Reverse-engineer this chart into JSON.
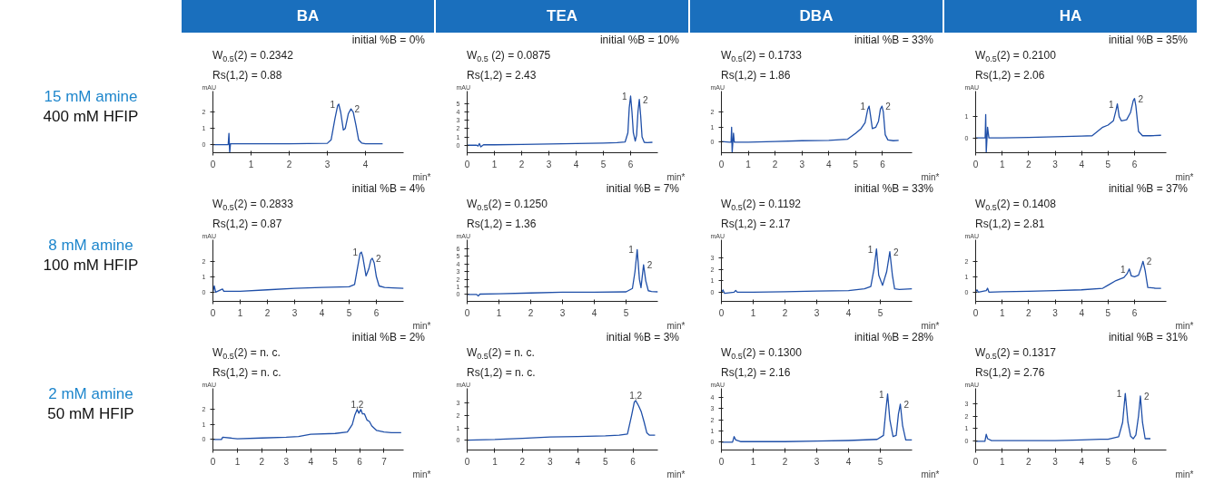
{
  "chart_data": [
    {
      "type": "line",
      "title": "initial %B = 0%",
      "xlabel": "min*",
      "ylabel": "mAU",
      "color": "#1f4fa8",
      "xlim": [
        0,
        5
      ],
      "ylim": [
        -0.5,
        3.3
      ],
      "xticks": [
        0,
        1,
        2,
        3,
        4
      ],
      "yticks": [
        0,
        1,
        2
      ],
      "annotations": [
        "BA",
        "15 mM amine",
        "400 mM HFIP",
        "W$_{0.5}$(2) = 0.2342",
        "Rs(1,2) = 0.88",
        {
          "text": "1",
          "x": 3.3,
          "y": 2.5
        },
        {
          "text": "2",
          "x": 3.62,
          "y": 2.2
        }
      ],
      "x": [
        0,
        0.2,
        0.4,
        0.42,
        0.44,
        0.46,
        0.5,
        0.6,
        1,
        1.5,
        2,
        2.5,
        3,
        3.1,
        3.2,
        3.27,
        3.3,
        3.35,
        3.42,
        3.47,
        3.55,
        3.62,
        3.68,
        3.75,
        3.82,
        3.9,
        4.0,
        4.2,
        4.45
      ],
      "values": [
        0,
        0,
        0,
        0.7,
        -0.5,
        0.05,
        0.05,
        0.05,
        0.05,
        0.05,
        0.05,
        0.07,
        0.08,
        0.3,
        1.6,
        2.4,
        2.5,
        2.0,
        0.9,
        1.0,
        1.9,
        2.2,
        2.0,
        1.2,
        0.3,
        0.1,
        0.05,
        0.05,
        0.05
      ]
    },
    {
      "type": "line",
      "title": "initial %B = 10%",
      "xlabel": "min*",
      "ylabel": "mAU",
      "color": "#1f4fa8",
      "xlim": [
        0,
        7
      ],
      "ylim": [
        -0.9,
        6.5
      ],
      "xticks": [
        0,
        1,
        2,
        3,
        4,
        5,
        6
      ],
      "yticks": [
        0,
        1,
        2,
        3,
        4,
        5
      ],
      "annotations": [
        "TEA",
        "W$_{0.5}$ (2) = 0.0875",
        "Rs(1,2) = 2.43",
        {
          "text": "1",
          "x": 6.0,
          "y": 5.9
        },
        {
          "text": "2",
          "x": 6.32,
          "y": 5.5
        }
      ],
      "x": [
        0,
        0.35,
        0.4,
        0.45,
        0.5,
        0.6,
        1,
        2,
        3,
        4,
        5,
        5.5,
        5.8,
        5.9,
        5.95,
        6.0,
        6.05,
        6.1,
        6.17,
        6.22,
        6.27,
        6.32,
        6.37,
        6.42,
        6.5,
        6.6,
        6.8
      ],
      "values": [
        0,
        0,
        -0.1,
        0.2,
        -0.2,
        0.05,
        0.05,
        0.1,
        0.15,
        0.2,
        0.25,
        0.3,
        0.4,
        1.5,
        4.5,
        5.9,
        4.0,
        1.5,
        0.5,
        1.2,
        4.0,
        5.5,
        3.5,
        1.0,
        0.35,
        0.3,
        0.35
      ]
    },
    {
      "type": "line",
      "title": "initial %B = 33%",
      "xlabel": "min*",
      "ylabel": "mAU",
      "color": "#1f4fa8",
      "xlim": [
        0,
        7.1
      ],
      "ylim": [
        -0.7,
        3.4
      ],
      "xticks": [
        0,
        1,
        2,
        3,
        4,
        5,
        6
      ],
      "yticks": [
        0,
        1,
        2
      ],
      "annotations": [
        "DBA",
        "W$_{0.5}$(2) = 0.1733",
        "Rs(1,2) = 1.86",
        {
          "text": "1",
          "x": 5.5,
          "y": 2.4
        },
        {
          "text": "2",
          "x": 5.98,
          "y": 2.4
        }
      ],
      "x": [
        0,
        0.3,
        0.36,
        0.38,
        0.4,
        0.43,
        0.45,
        0.48,
        0.6,
        1,
        2,
        3,
        4,
        4.7,
        5.0,
        5.2,
        5.35,
        5.45,
        5.5,
        5.55,
        5.62,
        5.75,
        5.85,
        5.92,
        5.98,
        6.03,
        6.1,
        6.2,
        6.4,
        6.6
      ],
      "values": [
        0.05,
        0,
        0,
        1.0,
        -0.7,
        0.1,
        0.6,
        0,
        0,
        0,
        0.05,
        0.1,
        0.12,
        0.2,
        0.6,
        0.9,
        1.3,
        2.2,
        2.4,
        1.8,
        0.9,
        1.0,
        1.4,
        2.2,
        2.4,
        2.0,
        0.5,
        0.15,
        0.1,
        0.12
      ]
    },
    {
      "type": "line",
      "title": "initial %B = 35%",
      "xlabel": "min*",
      "ylabel": "mAU",
      "color": "#1f4fa8",
      "xlim": [
        0,
        7.2
      ],
      "ylim": [
        -0.7,
        2.2
      ],
      "xticks": [
        0,
        1,
        2,
        3,
        4,
        5,
        6
      ],
      "yticks": [
        0,
        1
      ],
      "annotations": [
        "HA",
        "W$_{0.5}$(2) = 0.2100",
        "Rs(1,2) = 2.06",
        {
          "text": "1",
          "x": 5.35,
          "y": 1.6
        },
        {
          "text": "2",
          "x": 6.0,
          "y": 1.85
        }
      ],
      "x": [
        0,
        0.3,
        0.36,
        0.38,
        0.4,
        0.45,
        0.5,
        0.6,
        1,
        2,
        3,
        4,
        4.4,
        4.6,
        4.8,
        5.0,
        5.2,
        5.3,
        5.35,
        5.42,
        5.5,
        5.7,
        5.85,
        5.95,
        6.0,
        6.05,
        6.15,
        6.3,
        6.6,
        7.0
      ],
      "values": [
        0,
        0,
        0,
        1.1,
        -0.7,
        0.5,
        0,
        0,
        0,
        0.02,
        0.05,
        0.08,
        0.1,
        0.3,
        0.5,
        0.6,
        0.8,
        1.3,
        1.6,
        1.0,
        0.8,
        0.85,
        1.2,
        1.75,
        1.85,
        1.5,
        0.3,
        0.1,
        0.1,
        0.12
      ]
    },
    {
      "type": "line",
      "title": "initial %B = 4%",
      "xlabel": "min*",
      "ylabel": "mAU",
      "color": "#1f4fa8",
      "xlim": [
        0,
        7
      ],
      "ylim": [
        -0.6,
        3.4
      ],
      "xticks": [
        0,
        1,
        2,
        3,
        4,
        5,
        6
      ],
      "yticks": [
        0,
        1,
        2
      ],
      "annotations": [
        "8 mM amine",
        "100 mM HFIP",
        "W$_{0.5}$(2) = 0.2833",
        "Rs(1,2) = 0.87",
        {
          "text": "1",
          "x": 5.45,
          "y": 2.6
        },
        {
          "text": "2",
          "x": 5.85,
          "y": 2.2
        }
      ],
      "x": [
        0,
        0.05,
        0.1,
        0.35,
        0.4,
        1,
        2,
        3,
        4,
        5,
        5.2,
        5.3,
        5.4,
        5.45,
        5.5,
        5.62,
        5.72,
        5.8,
        5.85,
        5.92,
        6.0,
        6.1,
        6.3,
        6.6,
        7.0
      ],
      "values": [
        0,
        0.4,
        0,
        0.2,
        0.05,
        0.05,
        0.15,
        0.25,
        0.3,
        0.35,
        0.5,
        1.5,
        2.5,
        2.6,
        2.3,
        1.05,
        1.5,
        2.1,
        2.2,
        1.9,
        1.0,
        0.4,
        0.3,
        0.28,
        0.25
      ]
    },
    {
      "type": "line",
      "title": "initial %B = 7%",
      "xlabel": "min*",
      "ylabel": "mAU",
      "color": "#1f4fa8",
      "xlim": [
        0,
        6
      ],
      "ylim": [
        -0.9,
        7.2
      ],
      "xticks": [
        0,
        1,
        2,
        3,
        4,
        5
      ],
      "yticks": [
        0,
        1,
        2,
        3,
        4,
        5,
        6
      ],
      "annotations": [
        "W$_{0.5}$(2) = 0.1250",
        "Rs(1,2) = 1.36",
        {
          "text": "1",
          "x": 5.35,
          "y": 5.9
        },
        {
          "text": "2",
          "x": 5.55,
          "y": 3.9
        }
      ],
      "x": [
        0,
        0.3,
        0.35,
        0.4,
        1,
        2,
        3,
        4,
        5,
        5.2,
        5.28,
        5.35,
        5.42,
        5.47,
        5.55,
        5.62,
        5.7,
        5.8,
        6.0
      ],
      "values": [
        0,
        0,
        -0.2,
        0.05,
        0.1,
        0.2,
        0.3,
        0.3,
        0.35,
        0.8,
        3.0,
        5.9,
        2.0,
        0.9,
        3.9,
        1.8,
        0.5,
        0.4,
        0.35
      ]
    },
    {
      "type": "line",
      "title": "initial %B = 33%",
      "xlabel": "min*",
      "ylabel": "mAU",
      "color": "#1f4fa8",
      "xlim": [
        0,
        6
      ],
      "ylim": [
        -0.8,
        4.6
      ],
      "xticks": [
        0,
        1,
        2,
        3,
        4,
        5
      ],
      "yticks": [
        0,
        1,
        2,
        3
      ],
      "annotations": [
        "W$_{0.5}$(2) = 0.1192",
        "Rs(1,2) = 2.17",
        {
          "text": "1",
          "x": 4.88,
          "y": 3.8
        },
        {
          "text": "2",
          "x": 5.3,
          "y": 3.55
        }
      ],
      "x": [
        0,
        0.05,
        0.1,
        0.4,
        0.45,
        0.5,
        1,
        2,
        3,
        4,
        4.5,
        4.7,
        4.8,
        4.88,
        4.95,
        5.07,
        5.2,
        5.3,
        5.38,
        5.45,
        5.6,
        6.0
      ],
      "values": [
        0,
        0.2,
        -0.1,
        0,
        0.15,
        0,
        0,
        0.05,
        0.1,
        0.15,
        0.3,
        0.5,
        2.0,
        3.8,
        1.5,
        0.6,
        1.8,
        3.55,
        1.5,
        0.3,
        0.25,
        0.3
      ]
    },
    {
      "type": "line",
      "title": "initial %B = 37%",
      "xlabel": "min*",
      "ylabel": "mAU",
      "color": "#1f4fa8",
      "xlim": [
        0,
        7.2
      ],
      "ylim": [
        -0.6,
        3.4
      ],
      "xticks": [
        0,
        1,
        2,
        3,
        4,
        5,
        6
      ],
      "yticks": [
        0,
        1,
        2
      ],
      "annotations": [
        "W$_{0.5}$(2) = 0.1408",
        "Rs(1,2) = 2.81",
        {
          "text": "1",
          "x": 5.8,
          "y": 1.5
        },
        {
          "text": "2",
          "x": 6.32,
          "y": 2.0
        }
      ],
      "x": [
        0,
        0.05,
        0.1,
        0.4,
        0.45,
        0.5,
        1,
        2,
        3,
        4,
        4.8,
        5.0,
        5.3,
        5.6,
        5.72,
        5.8,
        5.88,
        6.0,
        6.15,
        6.25,
        6.32,
        6.4,
        6.5,
        6.8,
        7.0
      ],
      "values": [
        0,
        0.15,
        0,
        0.1,
        0.25,
        0,
        0.02,
        0.05,
        0.1,
        0.15,
        0.25,
        0.45,
        0.75,
        0.95,
        1.2,
        1.5,
        1.05,
        1.0,
        1.1,
        1.6,
        2.0,
        1.4,
        0.3,
        0.25,
        0.25
      ]
    },
    {
      "type": "line",
      "title": "initial %B = 2%",
      "xlabel": "min*",
      "ylabel": "mAU",
      "color": "#1f4fa8",
      "xlim": [
        0,
        7.8
      ],
      "ylim": [
        -0.7,
        3.4
      ],
      "xticks": [
        0,
        1,
        2,
        3,
        4,
        5,
        6,
        7
      ],
      "yticks": [
        0,
        1,
        2
      ],
      "annotations": [
        "2 mM amine",
        "50 mM HFIP",
        "W$_{0.5}$(2) = n. c.",
        "Rs(1,2) = n. c.",
        {
          "text": "1,2",
          "x": 5.9,
          "y": 2.0
        }
      ],
      "x": [
        0,
        0.35,
        0.4,
        1,
        2,
        3,
        3.5,
        4,
        5,
        5.5,
        5.7,
        5.8,
        5.9,
        5.97,
        6.05,
        6.12,
        6.2,
        6.3,
        6.4,
        6.5,
        6.7,
        7.0,
        7.3,
        7.7
      ],
      "values": [
        0,
        0,
        0.15,
        0.05,
        0.1,
        0.15,
        0.2,
        0.35,
        0.4,
        0.5,
        1.0,
        1.6,
        2.0,
        1.75,
        2.0,
        1.7,
        1.7,
        1.3,
        1.2,
        0.9,
        0.6,
        0.5,
        0.45,
        0.45
      ]
    },
    {
      "type": "line",
      "title": "initial %B = 3%",
      "xlabel": "min*",
      "ylabel": "mAU",
      "color": "#1f4fa8",
      "xlim": [
        0,
        6.9
      ],
      "ylim": [
        -0.8,
        4.2
      ],
      "xticks": [
        0,
        1,
        2,
        3,
        4,
        5,
        6
      ],
      "yticks": [
        0,
        1,
        2,
        3
      ],
      "annotations": [
        "W$_{0.5}$(2) = n. c.",
        "Rs(1,2) = n. c.",
        {
          "text": "1,2",
          "x": 6.1,
          "y": 3.2
        }
      ],
      "x": [
        0,
        1,
        2,
        3,
        4,
        5,
        5.5,
        5.8,
        5.95,
        6.05,
        6.1,
        6.2,
        6.3,
        6.4,
        6.5,
        6.6,
        6.8
      ],
      "values": [
        0,
        0.05,
        0.15,
        0.25,
        0.3,
        0.35,
        0.4,
        0.5,
        2.0,
        3.1,
        3.2,
        2.8,
        2.3,
        1.5,
        0.6,
        0.4,
        0.4
      ]
    },
    {
      "type": "line",
      "title": "initial %B = 28%",
      "xlabel": "min*",
      "ylabel": "mAU",
      "color": "#1f4fa8",
      "xlim": [
        0,
        6
      ],
      "ylim": [
        -0.7,
        4.8
      ],
      "xticks": [
        0,
        1,
        2,
        3,
        4,
        5
      ],
      "yticks": [
        0,
        1,
        2,
        3,
        4
      ],
      "annotations": [
        "W$_{0.5}$(2) = 0.1300",
        "Rs(1,2) = 2.16",
        {
          "text": "1",
          "x": 5.23,
          "y": 4.3
        },
        {
          "text": "2",
          "x": 5.63,
          "y": 3.4
        }
      ],
      "x": [
        0,
        0.35,
        0.4,
        0.45,
        0.6,
        1,
        2,
        3,
        4,
        4.9,
        5.1,
        5.18,
        5.23,
        5.3,
        5.4,
        5.5,
        5.57,
        5.63,
        5.7,
        5.8,
        6.0
      ],
      "values": [
        0,
        0,
        0.5,
        0.2,
        0.05,
        0.05,
        0.05,
        0.1,
        0.15,
        0.25,
        0.6,
        3.0,
        4.3,
        2.0,
        0.5,
        0.6,
        2.5,
        3.4,
        1.5,
        0.2,
        0.2
      ]
    },
    {
      "type": "line",
      "title": "initial %B = 31%",
      "xlabel": "min*",
      "ylabel": "mAU",
      "color": "#1f4fa8",
      "xlim": [
        0,
        7.2
      ],
      "ylim": [
        -0.7,
        4.2
      ],
      "xticks": [
        0,
        1,
        2,
        3,
        4,
        5,
        6
      ],
      "yticks": [
        0,
        1,
        2,
        3
      ],
      "annotations": [
        "W$_{0.5}$(2) = 0.1317",
        "Rs(1,2) = 2.76",
        {
          "text": "1",
          "x": 5.65,
          "y": 3.8
        },
        {
          "text": "2",
          "x": 6.22,
          "y": 3.6
        }
      ],
      "x": [
        0,
        0.35,
        0.4,
        0.45,
        0.6,
        1,
        2,
        3,
        4,
        4.7,
        5.0,
        5.4,
        5.55,
        5.65,
        5.75,
        5.85,
        5.95,
        6.05,
        6.15,
        6.22,
        6.3,
        6.4,
        6.6
      ],
      "values": [
        0,
        0,
        0.55,
        0.2,
        0.05,
        0.05,
        0.05,
        0.05,
        0.1,
        0.15,
        0.15,
        0.35,
        1.5,
        3.8,
        1.5,
        0.4,
        0.2,
        0.5,
        2.0,
        3.6,
        1.5,
        0.2,
        0.2
      ]
    }
  ]
}
